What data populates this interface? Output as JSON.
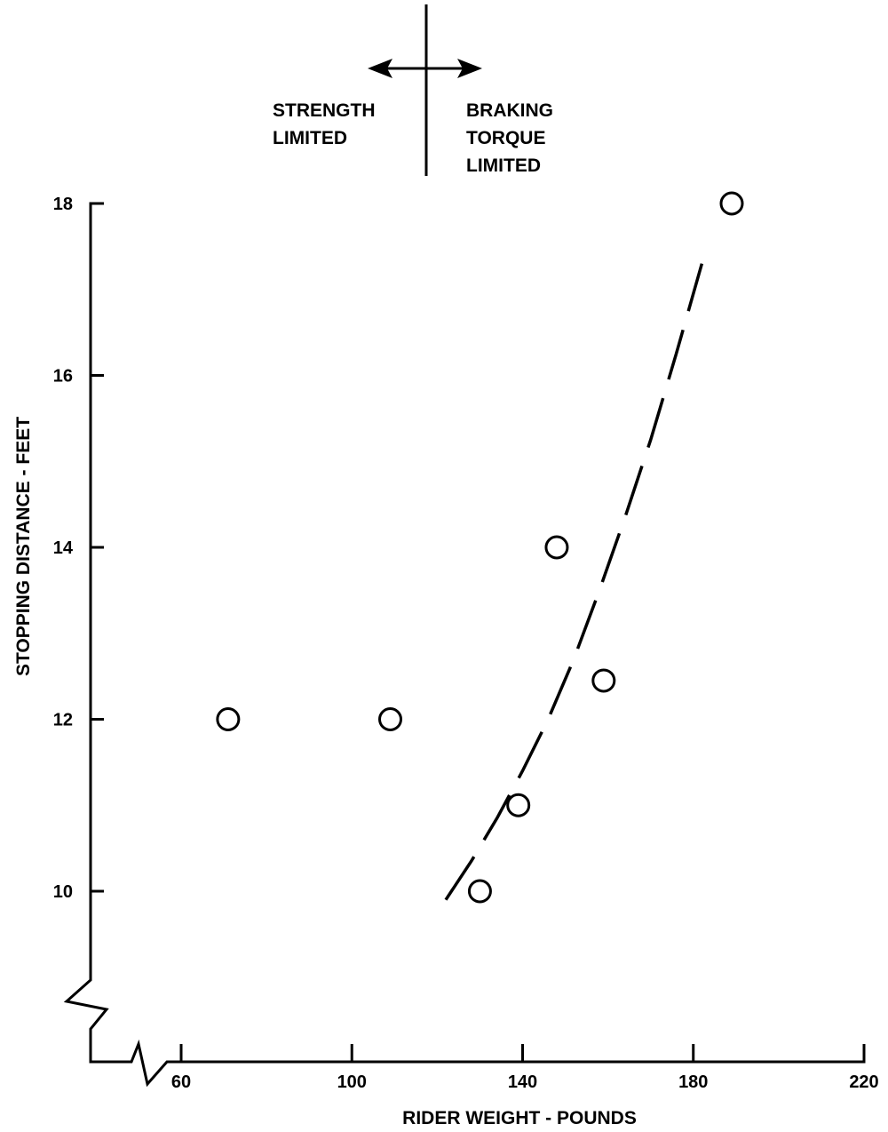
{
  "chart_data": {
    "type": "scatter",
    "title": "",
    "xlabel": "RIDER WEIGHT - POUNDS",
    "ylabel": "STOPPING DISTANCE - FEET",
    "xlim": [
      40,
      220
    ],
    "ylim": [
      8.1,
      18
    ],
    "x_ticks": [
      60,
      100,
      140,
      180,
      220
    ],
    "y_ticks": [
      10,
      12,
      14,
      16,
      18
    ],
    "axis_breaks": true,
    "grid": false,
    "series": [
      {
        "marker": "open-circle",
        "x": [
          71,
          109,
          130,
          139,
          148,
          159,
          189
        ],
        "y": [
          12.0,
          12.0,
          10.0,
          11.0,
          14.0,
          12.45,
          18.0
        ]
      },
      {
        "style": "dashed-curve",
        "x": [
          122,
          128,
          134,
          140,
          146,
          152,
          158,
          164,
          170,
          176,
          182
        ],
        "y": [
          9.9,
          10.35,
          10.85,
          11.4,
          12.0,
          12.7,
          13.5,
          14.35,
          15.25,
          16.25,
          17.3
        ]
      }
    ],
    "annotations": {
      "left": [
        "STRENGTH",
        "LIMITED"
      ],
      "right": [
        "BRAKING",
        "TORQUE",
        "LIMITED"
      ]
    }
  }
}
